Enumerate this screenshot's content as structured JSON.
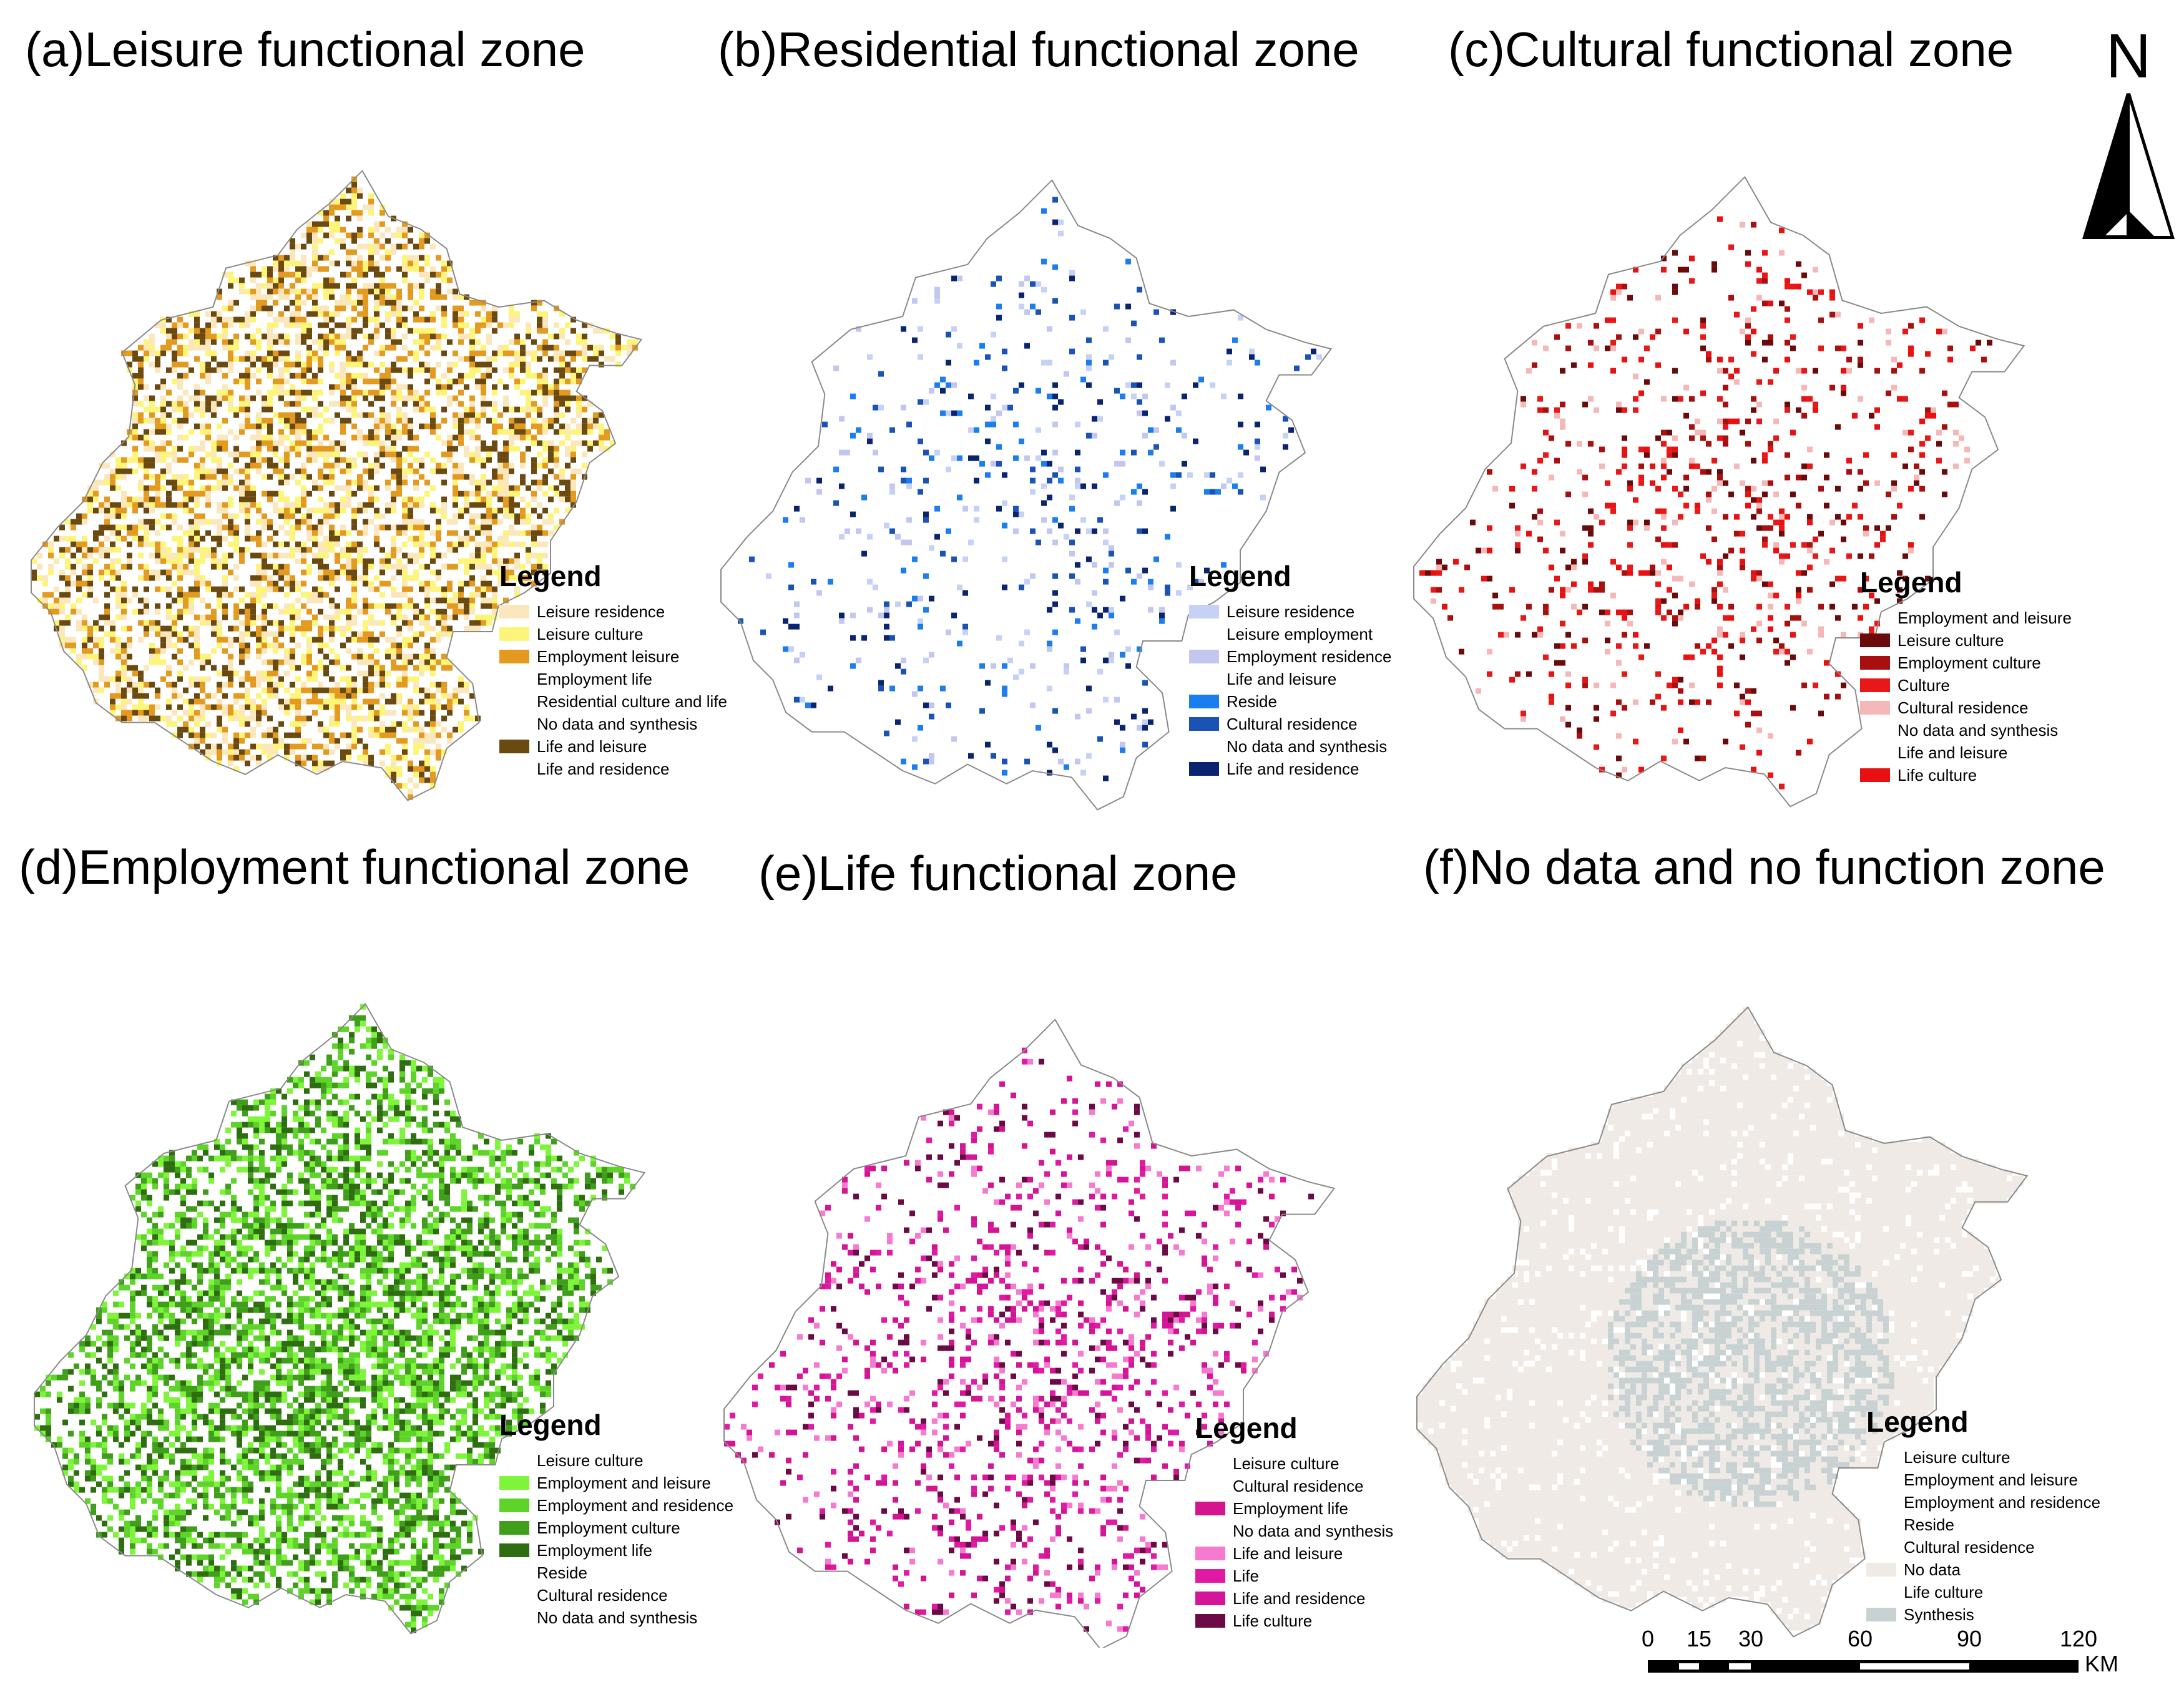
{
  "colors": {
    "outline": "#8a8a8a",
    "background": "#ffffff"
  },
  "north_arrow": {
    "label": "N"
  },
  "scale_bar": {
    "ticks": [
      "0",
      "15",
      "30",
      "60",
      "90",
      "120"
    ],
    "unit": "KM"
  },
  "panels": [
    {
      "id": "a",
      "title": "(a)Leisure functional zone",
      "legend_title": "Legend",
      "density": 0.55,
      "legend": [
        {
          "label": "Leisure residence",
          "color": "#fbe7bd"
        },
        {
          "label": "Leisure culture",
          "color": "#fdf57a"
        },
        {
          "label": "Employment leisure",
          "color": "#e39a1e"
        },
        {
          "label": "Employment life",
          "color": ""
        },
        {
          "label": "Residential culture and life",
          "color": ""
        },
        {
          "label": "No data and synthesis",
          "color": ""
        },
        {
          "label": "Life and leisure",
          "color": "#6b4a12"
        },
        {
          "label": "Life and residence",
          "color": ""
        }
      ]
    },
    {
      "id": "b",
      "title": "(b)Residential functional zone",
      "legend_title": "Legend",
      "density": 0.08,
      "legend": [
        {
          "label": "Leisure residence",
          "color": "#c6d2f5"
        },
        {
          "label": "Leisure employment",
          "color": ""
        },
        {
          "label": "Employment residence",
          "color": "#c3c6ee"
        },
        {
          "label": "Life and leisure",
          "color": ""
        },
        {
          "label": "Reside",
          "color": "#1a7df0"
        },
        {
          "label": "Cultural residence",
          "color": "#1a53b5"
        },
        {
          "label": "No data and synthesis",
          "color": ""
        },
        {
          "label": "Life and residence",
          "color": "#0a2470"
        }
      ]
    },
    {
      "id": "c",
      "title": "(c)Cultural functional zone",
      "legend_title": "Legend",
      "density": 0.12,
      "legend": [
        {
          "label": "Employment and leisure",
          "color": ""
        },
        {
          "label": "Leisure culture",
          "color": "#6b0a0a"
        },
        {
          "label": "Employment culture",
          "color": "#a81010"
        },
        {
          "label": "Culture",
          "color": "#e81818"
        },
        {
          "label": "Cultural residence",
          "color": "#f5b8b8"
        },
        {
          "label": "No data and synthesis",
          "color": ""
        },
        {
          "label": "Life and leisure",
          "color": ""
        },
        {
          "label": "Life culture",
          "color": "#e81010"
        }
      ]
    },
    {
      "id": "d",
      "title": "(d)Employment functional zone",
      "legend_title": "Legend",
      "density": 0.55,
      "legend": [
        {
          "label": "Leisure culture",
          "color": ""
        },
        {
          "label": "Employment and leisure",
          "color": "#7ef53a"
        },
        {
          "label": "Employment and residence",
          "color": "#5ed42a"
        },
        {
          "label": "Employment culture",
          "color": "#3f9e1a"
        },
        {
          "label": "Employment life",
          "color": "#2e6e10"
        },
        {
          "label": "Reside",
          "color": ""
        },
        {
          "label": "Cultural residence",
          "color": ""
        },
        {
          "label": "No data and synthesis",
          "color": ""
        }
      ]
    },
    {
      "id": "e",
      "title": "(e)Life functional zone",
      "legend_title": "Legend",
      "density": 0.18,
      "legend": [
        {
          "label": "Leisure culture",
          "color": ""
        },
        {
          "label": "Cultural residence",
          "color": ""
        },
        {
          "label": "Employment life",
          "color": "#d4158f"
        },
        {
          "label": "No data and synthesis",
          "color": ""
        },
        {
          "label": "Life and leisure",
          "color": "#f57ad0"
        },
        {
          "label": "Life",
          "color": "#e01aa5"
        },
        {
          "label": "Life and residence",
          "color": "#d4159a"
        },
        {
          "label": "Life culture",
          "color": "#6b0a45"
        }
      ]
    },
    {
      "id": "f",
      "title": "(f)No data and no function zone",
      "legend_title": "Legend",
      "density": 0.92,
      "legend": [
        {
          "label": "Leisure culture",
          "color": ""
        },
        {
          "label": "Employment and leisure",
          "color": ""
        },
        {
          "label": "Employment and residence",
          "color": ""
        },
        {
          "label": "Reside",
          "color": ""
        },
        {
          "label": "Cultural residence",
          "color": ""
        },
        {
          "label": "No data",
          "color": "#efeae6"
        },
        {
          "label": "Life culture",
          "color": ""
        },
        {
          "label": "Synthesis",
          "color": "#c9d2d2"
        }
      ]
    }
  ]
}
